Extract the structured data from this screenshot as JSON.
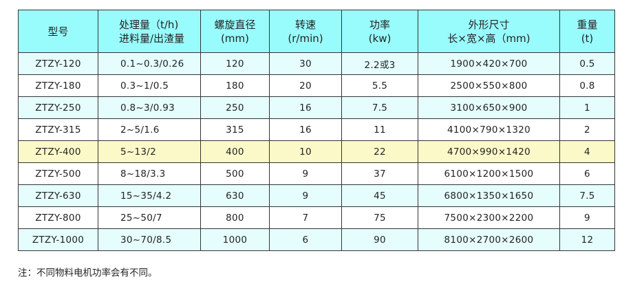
{
  "headers": [
    {
      "line1": "型号",
      "line2": ""
    },
    {
      "line1": "处理量（t/h)",
      "line2": "进料量/出渣量"
    },
    {
      "line1": "螺旋直径",
      "line2": "(mm)"
    },
    {
      "line1": "转速",
      "line2": "(r/min)"
    },
    {
      "line1": "功率",
      "line2": "(kw)"
    },
    {
      "line1": "外形尺寸",
      "line2": "长×宽×高（mm)"
    },
    {
      "line1": "重量",
      "line2": "(t)"
    }
  ],
  "rows": [
    [
      "ZTZY-120",
      "0.1~0.3/0.26",
      "120",
      "30",
      "2.2或3",
      "1900×420×700",
      "0.5"
    ],
    [
      "ZTZY-180",
      "0.3~1/0.5",
      "180",
      "20",
      "5.5",
      "2500×550×800",
      "0.8"
    ],
    [
      "ZTZY-250",
      "0.8~3/0.93",
      "250",
      "16",
      "7.5",
      "3100×650×900",
      "1"
    ],
    [
      "ZTZY-315",
      "2~5/1.6",
      "315",
      "16",
      "11",
      "4100×790×1320",
      "2"
    ],
    [
      "ZTZY-400",
      "5~13/2",
      "400",
      "10",
      "22",
      "4700×990×1420",
      "4"
    ],
    [
      "ZTZY-500",
      "8~18/3.3",
      "500",
      "9",
      "37",
      "6100×1200×1500",
      "6"
    ],
    [
      "ZTZY-630",
      "15~35/4.2",
      "630",
      "9",
      "45",
      "6800×1350×1650",
      "7.5"
    ],
    [
      "ZTZY-800",
      "25~50/7",
      "800",
      "7",
      "75",
      "7500×2300×2200",
      "9"
    ],
    [
      "ZTZY-1000",
      "30~70/8.5",
      "1000",
      "6",
      "90",
      "8100×2700×2600",
      "12"
    ]
  ],
  "highlighted_row": "ZTZY-400",
  "colors": {
    "header": "#99fcfc",
    "alt_row": "#e5fdfd",
    "highlight": "#fbf9c8"
  },
  "note": "注：不同物料电机功率会有不同。"
}
